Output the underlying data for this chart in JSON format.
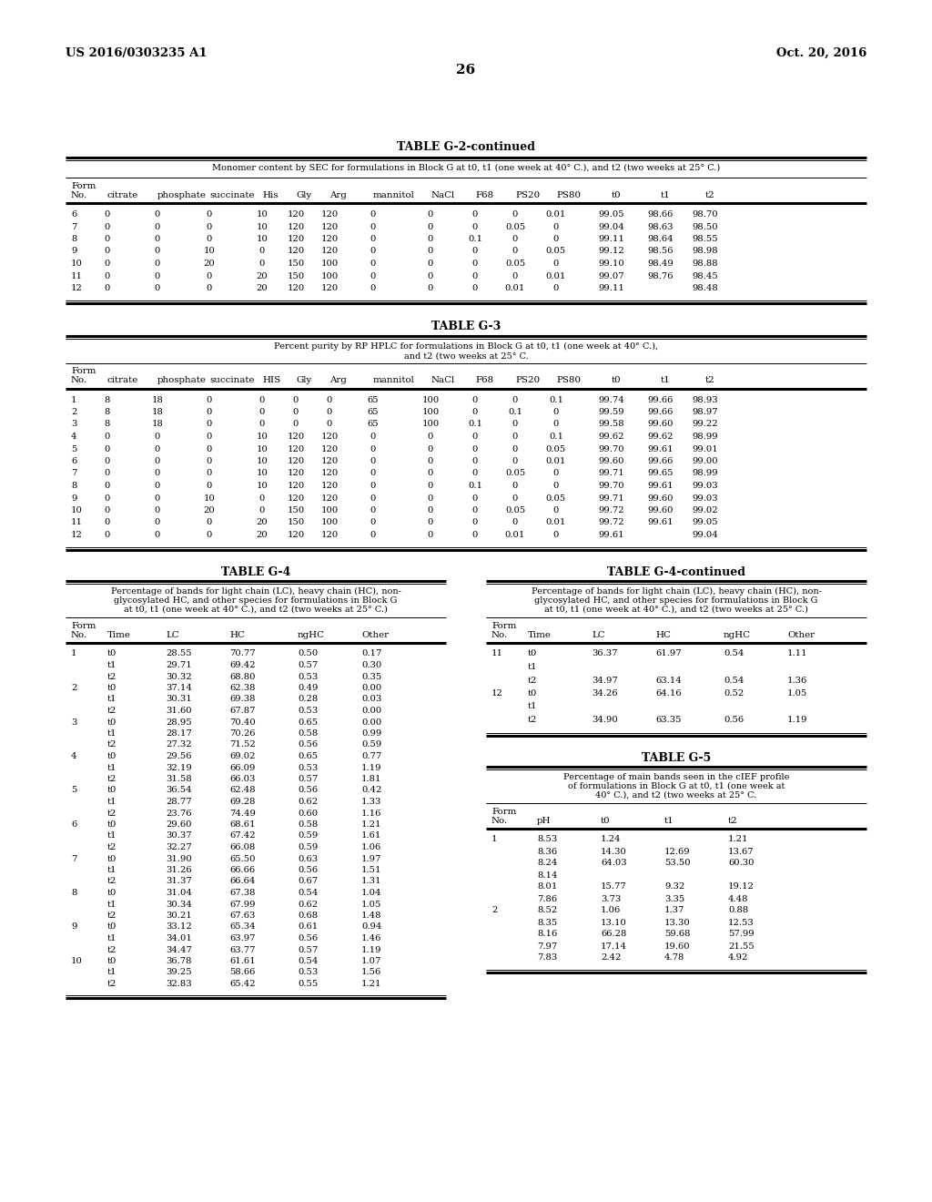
{
  "page_header_left": "US 2016/0303235 A1",
  "page_header_right": "Oct. 20, 2016",
  "page_number": "26",
  "table_g2_continued": {
    "title": "TABLE G-2-continued",
    "subtitle": "Monomer content by SEC for formulations in Block G at t0, t1 (one week at 40° C.), and t2 (two weeks at 25° C.)",
    "rows": [
      [
        "6",
        "0",
        "0",
        "0",
        "10",
        "120",
        "120",
        "0",
        "0",
        "0",
        "0",
        "0.01",
        "99.05",
        "98.66",
        "98.70"
      ],
      [
        "7",
        "0",
        "0",
        "0",
        "10",
        "120",
        "120",
        "0",
        "0",
        "0",
        "0.05",
        "0",
        "99.04",
        "98.63",
        "98.50"
      ],
      [
        "8",
        "0",
        "0",
        "0",
        "10",
        "120",
        "120",
        "0",
        "0",
        "0.1",
        "0",
        "0",
        "99.11",
        "98.64",
        "98.55"
      ],
      [
        "9",
        "0",
        "0",
        "10",
        "0",
        "120",
        "120",
        "0",
        "0",
        "0",
        "0",
        "0.05",
        "99.12",
        "98.56",
        "98.98"
      ],
      [
        "10",
        "0",
        "0",
        "20",
        "0",
        "150",
        "100",
        "0",
        "0",
        "0",
        "0.05",
        "0",
        "99.10",
        "98.49",
        "98.88"
      ],
      [
        "11",
        "0",
        "0",
        "0",
        "20",
        "150",
        "100",
        "0",
        "0",
        "0",
        "0",
        "0.01",
        "99.07",
        "98.76",
        "98.45"
      ],
      [
        "12",
        "0",
        "0",
        "0",
        "20",
        "120",
        "120",
        "0",
        "0",
        "0",
        "0.01",
        "0",
        "99.11",
        "",
        "98.48"
      ]
    ]
  },
  "table_g3": {
    "title": "TABLE G-3",
    "subtitle_line1": "Percent purity by RP HPLC for formulations in Block G at t0, t1 (one week at 40° C.),",
    "subtitle_line2": "and t2 (two weeks at 25° C.",
    "rows": [
      [
        "1",
        "8",
        "18",
        "0",
        "0",
        "0",
        "0",
        "65",
        "100",
        "0",
        "0",
        "0.1",
        "99.74",
        "99.66",
        "98.93"
      ],
      [
        "2",
        "8",
        "18",
        "0",
        "0",
        "0",
        "0",
        "65",
        "100",
        "0",
        "0.1",
        "0",
        "99.59",
        "99.66",
        "98.97"
      ],
      [
        "3",
        "8",
        "18",
        "0",
        "0",
        "0",
        "0",
        "65",
        "100",
        "0.1",
        "0",
        "0",
        "99.58",
        "99.60",
        "99.22"
      ],
      [
        "4",
        "0",
        "0",
        "0",
        "10",
        "120",
        "120",
        "0",
        "0",
        "0",
        "0",
        "0.1",
        "99.62",
        "99.62",
        "98.99"
      ],
      [
        "5",
        "0",
        "0",
        "0",
        "10",
        "120",
        "120",
        "0",
        "0",
        "0",
        "0",
        "0.05",
        "99.70",
        "99.61",
        "99.01"
      ],
      [
        "6",
        "0",
        "0",
        "0",
        "10",
        "120",
        "120",
        "0",
        "0",
        "0",
        "0",
        "0.01",
        "99.60",
        "99.66",
        "99.00"
      ],
      [
        "7",
        "0",
        "0",
        "0",
        "10",
        "120",
        "120",
        "0",
        "0",
        "0",
        "0.05",
        "0",
        "99.71",
        "99.65",
        "98.99"
      ],
      [
        "8",
        "0",
        "0",
        "0",
        "10",
        "120",
        "120",
        "0",
        "0",
        "0.1",
        "0",
        "0",
        "99.70",
        "99.61",
        "99.03"
      ],
      [
        "9",
        "0",
        "0",
        "10",
        "0",
        "120",
        "120",
        "0",
        "0",
        "0",
        "0",
        "0.05",
        "99.71",
        "99.60",
        "99.03"
      ],
      [
        "10",
        "0",
        "0",
        "20",
        "0",
        "150",
        "100",
        "0",
        "0",
        "0",
        "0.05",
        "0",
        "99.72",
        "99.60",
        "99.02"
      ],
      [
        "11",
        "0",
        "0",
        "0",
        "20",
        "150",
        "100",
        "0",
        "0",
        "0",
        "0",
        "0.01",
        "99.72",
        "99.61",
        "99.05"
      ],
      [
        "12",
        "0",
        "0",
        "0",
        "20",
        "120",
        "120",
        "0",
        "0",
        "0",
        "0.01",
        "0",
        "99.61",
        "",
        "99.04"
      ]
    ]
  },
  "table_g4": {
    "title": "TABLE G-4",
    "subtitle_line1": "Percentage of bands for light chain (LC), heavy chain (HC), non-",
    "subtitle_line2": "glycosylated HC, and other species for formulations in Block G",
    "subtitle_line3": "at t0, t1 (one week at 40° C.), and t2 (two weeks at 25° C.)",
    "rows": [
      [
        "1",
        "t0",
        "28.55",
        "70.77",
        "0.50",
        "0.17"
      ],
      [
        "",
        "t1",
        "29.71",
        "69.42",
        "0.57",
        "0.30"
      ],
      [
        "",
        "t2",
        "30.32",
        "68.80",
        "0.53",
        "0.35"
      ],
      [
        "2",
        "t0",
        "37.14",
        "62.38",
        "0.49",
        "0.00"
      ],
      [
        "",
        "t1",
        "30.31",
        "69.38",
        "0.28",
        "0.03"
      ],
      [
        "",
        "t2",
        "31.60",
        "67.87",
        "0.53",
        "0.00"
      ],
      [
        "3",
        "t0",
        "28.95",
        "70.40",
        "0.65",
        "0.00"
      ],
      [
        "",
        "t1",
        "28.17",
        "70.26",
        "0.58",
        "0.99"
      ],
      [
        "",
        "t2",
        "27.32",
        "71.52",
        "0.56",
        "0.59"
      ],
      [
        "4",
        "t0",
        "29.56",
        "69.02",
        "0.65",
        "0.77"
      ],
      [
        "",
        "t1",
        "32.19",
        "66.09",
        "0.53",
        "1.19"
      ],
      [
        "",
        "t2",
        "31.58",
        "66.03",
        "0.57",
        "1.81"
      ],
      [
        "5",
        "t0",
        "36.54",
        "62.48",
        "0.56",
        "0.42"
      ],
      [
        "",
        "t1",
        "28.77",
        "69.28",
        "0.62",
        "1.33"
      ],
      [
        "",
        "t2",
        "23.76",
        "74.49",
        "0.60",
        "1.16"
      ],
      [
        "6",
        "t0",
        "29.60",
        "68.61",
        "0.58",
        "1.21"
      ],
      [
        "",
        "t1",
        "30.37",
        "67.42",
        "0.59",
        "1.61"
      ],
      [
        "",
        "t2",
        "32.27",
        "66.08",
        "0.59",
        "1.06"
      ],
      [
        "7",
        "t0",
        "31.90",
        "65.50",
        "0.63",
        "1.97"
      ],
      [
        "",
        "t1",
        "31.26",
        "66.66",
        "0.56",
        "1.51"
      ],
      [
        "",
        "t2",
        "31.37",
        "66.64",
        "0.67",
        "1.31"
      ],
      [
        "8",
        "t0",
        "31.04",
        "67.38",
        "0.54",
        "1.04"
      ],
      [
        "",
        "t1",
        "30.34",
        "67.99",
        "0.62",
        "1.05"
      ],
      [
        "",
        "t2",
        "30.21",
        "67.63",
        "0.68",
        "1.48"
      ],
      [
        "9",
        "t0",
        "33.12",
        "65.34",
        "0.61",
        "0.94"
      ],
      [
        "",
        "t1",
        "34.01",
        "63.97",
        "0.56",
        "1.46"
      ],
      [
        "",
        "t2",
        "34.47",
        "63.77",
        "0.57",
        "1.19"
      ],
      [
        "10",
        "t0",
        "36.78",
        "61.61",
        "0.54",
        "1.07"
      ],
      [
        "",
        "t1",
        "39.25",
        "58.66",
        "0.53",
        "1.56"
      ],
      [
        "",
        "t2",
        "32.83",
        "65.42",
        "0.55",
        "1.21"
      ]
    ]
  },
  "table_g4_continued": {
    "title": "TABLE G-4-continued",
    "subtitle_line1": "Percentage of bands for light chain (LC), heavy chain (HC), non-",
    "subtitle_line2": "glycosylated HC, and other species for formulations in Block G",
    "subtitle_line3": "at t0, t1 (one week at 40° C.), and t2 (two weeks at 25° C.)",
    "rows": [
      [
        "11",
        "t0",
        "36.37",
        "61.97",
        "0.54",
        "1.11"
      ],
      [
        "",
        "t1",
        "",
        "",
        "",
        ""
      ],
      [
        "",
        "t2",
        "34.97",
        "63.14",
        "0.54",
        "1.36"
      ],
      [
        "12",
        "t0",
        "34.26",
        "64.16",
        "0.52",
        "1.05"
      ],
      [
        "",
        "t1",
        "",
        "",
        "",
        ""
      ],
      [
        "",
        "t2",
        "34.90",
        "63.35",
        "0.56",
        "1.19"
      ]
    ]
  },
  "table_g5": {
    "title": "TABLE G-5",
    "subtitle_line1": "Percentage of main bands seen in the cIEF profile",
    "subtitle_line2": "of formulations in Block G at t0, t1 (one week at",
    "subtitle_line3": "40° C.), and t2 (two weeks at 25° C.",
    "rows": [
      [
        "1",
        "8.53",
        "1.24",
        "",
        "1.21"
      ],
      [
        "",
        "8.36",
        "14.30",
        "12.69",
        "13.67"
      ],
      [
        "",
        "8.24",
        "64.03",
        "53.50",
        "60.30"
      ],
      [
        "",
        "8.14",
        "",
        "",
        ""
      ],
      [
        "",
        "8.01",
        "15.77",
        "9.32",
        "19.12"
      ],
      [
        "",
        "7.86",
        "3.73",
        "3.35",
        "4.48"
      ],
      [
        "2",
        "8.52",
        "1.06",
        "1.37",
        "0.88"
      ],
      [
        "",
        "8.35",
        "13.10",
        "13.30",
        "12.53"
      ],
      [
        "",
        "8.16",
        "66.28",
        "59.68",
        "57.99"
      ],
      [
        "",
        "7.97",
        "17.14",
        "19.60",
        "21.55"
      ],
      [
        "",
        "7.83",
        "2.42",
        "4.78",
        "4.92"
      ]
    ]
  }
}
